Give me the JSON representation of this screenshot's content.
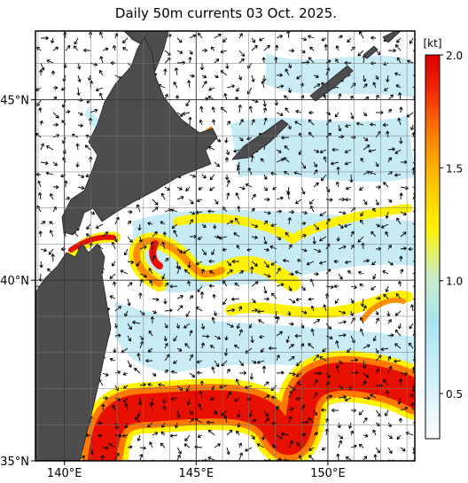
{
  "title": "Daily 50m currents 03 Oct. 2025.",
  "map": {
    "lonlim": [
      138.9,
      153.3
    ],
    "latlim": [
      35,
      46.9
    ],
    "lon_ticks": [
      {
        "value": 140,
        "label": "140°E"
      },
      {
        "value": 145,
        "label": "145°E"
      },
      {
        "value": 150,
        "label": "150°E"
      }
    ],
    "lat_ticks": [
      {
        "value": 35,
        "label": "35°N"
      },
      {
        "value": 40,
        "label": "40°N"
      },
      {
        "value": 45,
        "label": "45°N"
      }
    ]
  },
  "colorbar": {
    "unit": "[kt]",
    "range": [
      0.3,
      2.0
    ],
    "ticks": [
      0.5,
      {
        "value": 1,
        "label": "1.0"
      },
      1.5,
      {
        "value": 2,
        "label": "2.0"
      }
    ]
  }
}
